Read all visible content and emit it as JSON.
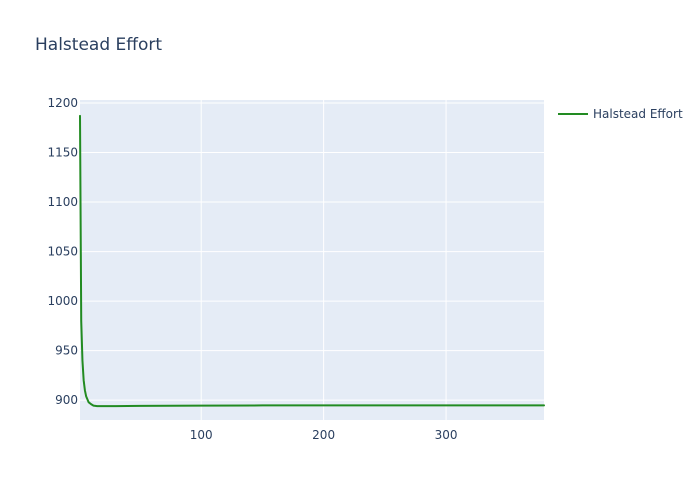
{
  "chart_data": {
    "type": "line",
    "title": "Halstead Effort",
    "xlabel": "",
    "ylabel": "",
    "xlim": [
      1,
      380
    ],
    "ylim": [
      880,
      1203
    ],
    "xticks": [
      100,
      200,
      300
    ],
    "yticks": [
      900,
      950,
      1000,
      1050,
      1100,
      1150,
      1200
    ],
    "grid": true,
    "legend_position": "top-right",
    "series": [
      {
        "name": "Halstead Effort",
        "color": "#228b22",
        "x": [
          1,
          2,
          3,
          4,
          5,
          6,
          8,
          10,
          12,
          15,
          20,
          30,
          50,
          100,
          150,
          200,
          250,
          300,
          350,
          380
        ],
        "y": [
          1187,
          980,
          940,
          920,
          910,
          904,
          898,
          896,
          894.5,
          894,
          894,
          894,
          894.2,
          894.5,
          894.7,
          894.8,
          894.8,
          894.8,
          894.8,
          894.8
        ]
      }
    ]
  }
}
